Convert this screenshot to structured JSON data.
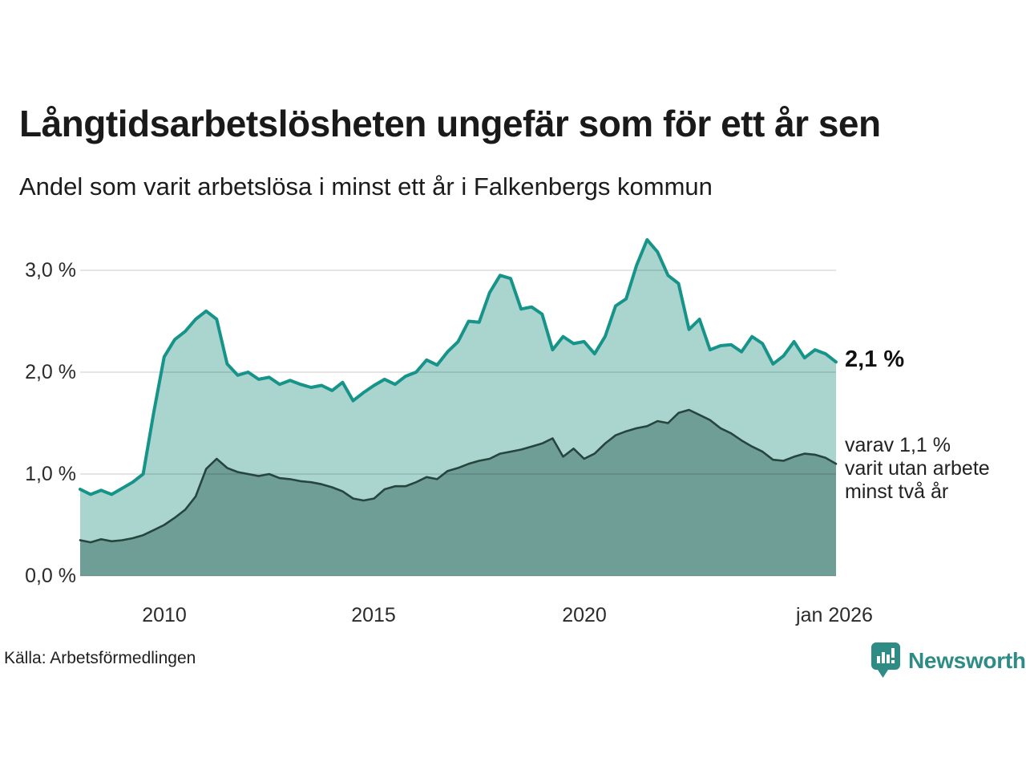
{
  "title": "Långtidsarbetslösheten ungefär som för ett år sen",
  "subtitle": "Andel som varit arbetslösa i minst ett år i Falkenbergs kommun",
  "source": "Källa: Arbetsförmedlingen",
  "branding": {
    "name": "Newsworthy",
    "color": "#2e8c85",
    "icon": "bar-chart-speech-bubble"
  },
  "annotations": {
    "latest_value": "2,1 %",
    "note_lines": [
      "varav 1,1 %",
      "varit utan arbete",
      "minst två år"
    ]
  },
  "colors": {
    "background": "#ffffff",
    "grid": "rgba(0,0,0,0.10)",
    "title_text": "#1a1a1a",
    "axis_text": "#2b2b2b",
    "series1_line": "#17948a",
    "series1_fill": "#aad5ce",
    "series2_line": "#27453f",
    "series2_fill": "#6f9e96"
  },
  "chart_data": {
    "type": "area",
    "title": "Långtidsarbetslösheten ungefär som för ett år sen",
    "subtitle": "Andel som varit arbetslösa i minst ett år i Falkenbergs kommun",
    "unit": "%",
    "grid": "horizontal",
    "legend_position": "none",
    "xlim": [
      2008,
      2026
    ],
    "ylim": [
      0,
      3.3
    ],
    "x": [
      2008.0,
      2008.25,
      2008.5,
      2008.75,
      2009.0,
      2009.25,
      2009.5,
      2009.75,
      2010.0,
      2010.25,
      2010.5,
      2010.75,
      2011.0,
      2011.25,
      2011.5,
      2011.75,
      2012.0,
      2012.25,
      2012.5,
      2012.75,
      2013.0,
      2013.25,
      2013.5,
      2013.75,
      2014.0,
      2014.25,
      2014.5,
      2014.75,
      2015.0,
      2015.25,
      2015.5,
      2015.75,
      2016.0,
      2016.25,
      2016.5,
      2016.75,
      2017.0,
      2017.25,
      2017.5,
      2017.75,
      2018.0,
      2018.25,
      2018.5,
      2018.75,
      2019.0,
      2019.25,
      2019.5,
      2019.75,
      2020.0,
      2020.25,
      2020.5,
      2020.75,
      2021.0,
      2021.25,
      2021.5,
      2021.75,
      2022.0,
      2022.25,
      2022.5,
      2022.75,
      2023.0,
      2023.25,
      2023.5,
      2023.75,
      2024.0,
      2024.25,
      2024.5,
      2024.75,
      2025.0,
      2025.25,
      2025.5,
      2025.75,
      2026.0
    ],
    "series": [
      {
        "name": "Arbetslösa minst ett år",
        "line_color": "#17948a",
        "fill_color": "#aad5ce",
        "latest_label": "2,1 %",
        "values": [
          0.85,
          0.8,
          0.84,
          0.8,
          0.86,
          0.92,
          1.0,
          1.6,
          2.15,
          2.32,
          2.4,
          2.52,
          2.6,
          2.52,
          2.08,
          1.97,
          2.0,
          1.93,
          1.95,
          1.88,
          1.92,
          1.88,
          1.85,
          1.87,
          1.82,
          1.9,
          1.72,
          1.8,
          1.87,
          1.93,
          1.88,
          1.96,
          2.0,
          2.12,
          2.07,
          2.2,
          2.3,
          2.5,
          2.49,
          2.78,
          2.95,
          2.92,
          2.62,
          2.64,
          2.57,
          2.22,
          2.35,
          2.28,
          2.3,
          2.18,
          2.35,
          2.65,
          2.72,
          3.05,
          3.3,
          3.18,
          2.95,
          2.87,
          2.42,
          2.52,
          2.22,
          2.26,
          2.27,
          2.2,
          2.35,
          2.28,
          2.08,
          2.16,
          2.3,
          2.14,
          2.22,
          2.18,
          2.1
        ]
      },
      {
        "name": "Varit utan arbete minst två år",
        "line_color": "#27453f",
        "fill_color": "#6f9e96",
        "latest_label": "1,1 %",
        "values": [
          0.35,
          0.33,
          0.36,
          0.34,
          0.35,
          0.37,
          0.4,
          0.45,
          0.5,
          0.57,
          0.65,
          0.78,
          1.05,
          1.15,
          1.06,
          1.02,
          1.0,
          0.98,
          1.0,
          0.96,
          0.95,
          0.93,
          0.92,
          0.9,
          0.87,
          0.83,
          0.76,
          0.74,
          0.76,
          0.85,
          0.88,
          0.88,
          0.92,
          0.97,
          0.95,
          1.03,
          1.06,
          1.1,
          1.13,
          1.15,
          1.2,
          1.22,
          1.24,
          1.27,
          1.3,
          1.35,
          1.17,
          1.25,
          1.15,
          1.2,
          1.3,
          1.38,
          1.42,
          1.45,
          1.47,
          1.52,
          1.5,
          1.6,
          1.63,
          1.58,
          1.53,
          1.45,
          1.4,
          1.33,
          1.27,
          1.22,
          1.14,
          1.13,
          1.17,
          1.2,
          1.19,
          1.16,
          1.1
        ]
      }
    ],
    "yticks": [
      {
        "value": 0,
        "label": "0,0 %"
      },
      {
        "value": 1,
        "label": "1,0 %"
      },
      {
        "value": 2,
        "label": "2,0 %"
      },
      {
        "value": 3,
        "label": "3,0 %"
      }
    ],
    "xticks": [
      {
        "value": 2010,
        "label": "2010"
      },
      {
        "value": 2015,
        "label": "2015"
      },
      {
        "value": 2020,
        "label": "2020"
      },
      {
        "value": 2026,
        "label": "jan 2026"
      }
    ]
  }
}
